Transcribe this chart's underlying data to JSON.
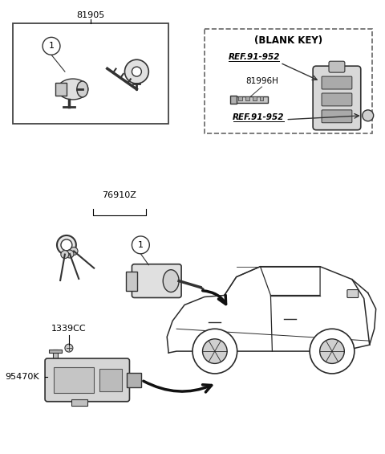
{
  "bg_color": "#ffffff",
  "line_color": "#000000",
  "label_81905": "81905",
  "label_76910Z": "76910Z",
  "label_1339CC": "1339CC",
  "label_95470K": "95470K",
  "label_81996H": "81996H",
  "label_blank_key": "(BLANK KEY)",
  "label_ref1": "REF.91-952",
  "label_ref2": "REF.91-952",
  "label_1": "1",
  "fig_width": 4.8,
  "fig_height": 5.65,
  "dpi": 100
}
